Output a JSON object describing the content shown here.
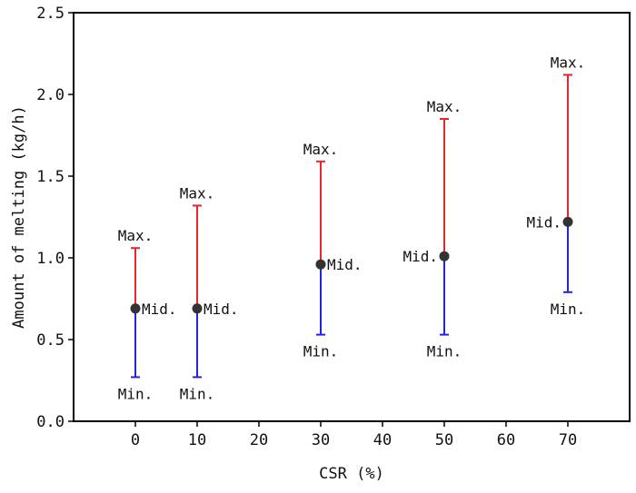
{
  "chart_data": {
    "type": "scatter",
    "title": "",
    "xlabel": "CSR (%)",
    "ylabel": "Amount of melting (kg/h)",
    "xlim": [
      -10,
      80
    ],
    "ylim": [
      0.0,
      2.5
    ],
    "xticks": [
      0,
      10,
      20,
      30,
      40,
      50,
      60,
      70
    ],
    "yticks": [
      0.0,
      0.5,
      1.0,
      1.5,
      2.0,
      2.5
    ],
    "xtick_labels": [
      "0",
      "10",
      "20",
      "30",
      "40",
      "50",
      "60",
      "70"
    ],
    "ytick_labels": [
      "0.0",
      "0.5",
      "1.0",
      "1.5",
      "2.0",
      "2.5"
    ],
    "grid": false,
    "labels": {
      "max": "Max.",
      "mid": "Mid.",
      "min": "Min."
    },
    "colors": {
      "upper": "#e8252a",
      "lower": "#2323e0",
      "point": "#333333",
      "axis": "#000000"
    },
    "points": [
      {
        "x": 0,
        "min": 0.27,
        "mid": 0.69,
        "max": 1.06,
        "mid_label_side": "right"
      },
      {
        "x": 10,
        "min": 0.27,
        "mid": 0.69,
        "max": 1.32,
        "mid_label_side": "right"
      },
      {
        "x": 30,
        "min": 0.53,
        "mid": 0.96,
        "max": 1.59,
        "mid_label_side": "right"
      },
      {
        "x": 50,
        "min": 0.53,
        "mid": 1.01,
        "max": 1.85,
        "mid_label_side": "left"
      },
      {
        "x": 70,
        "min": 0.79,
        "mid": 1.22,
        "max": 2.12,
        "mid_label_side": "left"
      }
    ]
  }
}
